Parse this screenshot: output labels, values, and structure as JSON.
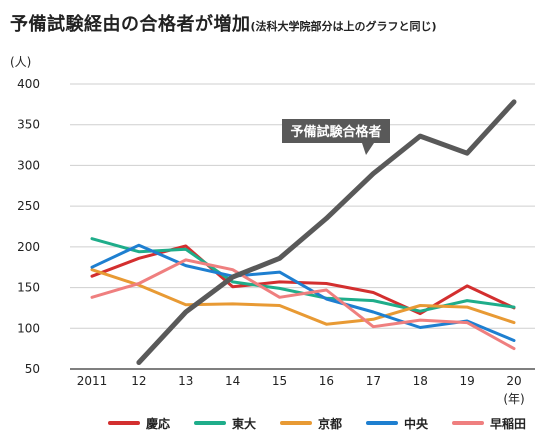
{
  "title": "予備試験経由の合格者が増加",
  "subtitle": "(法科大学院部分は上のグラフと同じ)",
  "chart_data": {
    "type": "line",
    "x": [
      "2011",
      "12",
      "13",
      "14",
      "15",
      "16",
      "17",
      "18",
      "19",
      "20"
    ],
    "yunit": "(人)",
    "xunit": "(年)",
    "ylim": [
      50,
      400
    ],
    "yticks": [
      50,
      100,
      150,
      200,
      250,
      300,
      350,
      400
    ],
    "grid": true,
    "legend_position": "bottom",
    "annotation": "予備試験合格者",
    "series": [
      {
        "name": "慶応",
        "color": "#d32f2f",
        "values": [
          164,
          186,
          201,
          151,
          157,
          155,
          144,
          118,
          152,
          125
        ]
      },
      {
        "name": "東大",
        "color": "#1fad8a",
        "values": [
          210,
          194,
          197,
          157,
          149,
          137,
          134,
          121,
          134,
          126
        ]
      },
      {
        "name": "京都",
        "color": "#e89a34",
        "values": [
          172,
          153,
          129,
          130,
          128,
          105,
          111,
          128,
          126,
          107
        ]
      },
      {
        "name": "中央",
        "color": "#1e7fd0",
        "values": [
          175,
          202,
          177,
          164,
          169,
          136,
          120,
          101,
          109,
          85
        ]
      },
      {
        "name": "早稲田",
        "color": "#ef7f7f",
        "values": [
          138,
          155,
          184,
          172,
          138,
          147,
          102,
          110,
          107,
          75
        ]
      },
      {
        "name": "予備試験合格者",
        "color": "#595959",
        "legend": false,
        "values": [
          null,
          58,
          120,
          163,
          186,
          235,
          290,
          336,
          315,
          378
        ]
      }
    ]
  }
}
